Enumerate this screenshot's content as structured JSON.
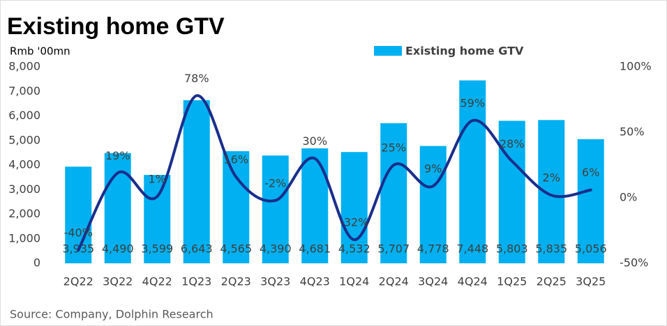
{
  "chart_data": {
    "type": "bar_line",
    "title": "Existing home GTV",
    "y_axis_label": "Rmb '00mn",
    "source": "Source: Company, Dolphin Research",
    "categories": [
      "2Q22",
      "3Q22",
      "4Q22",
      "1Q23",
      "2Q23",
      "3Q23",
      "4Q23",
      "1Q24",
      "2Q24",
      "3Q24",
      "4Q24",
      "1Q25",
      "2Q25",
      "3Q25"
    ],
    "series": [
      {
        "name": "Existing home GTV",
        "type": "bar",
        "color": "#00b0f0",
        "values": [
          3935,
          4490,
          3599,
          6643,
          4565,
          4390,
          4681,
          4532,
          5707,
          4778,
          7448,
          5803,
          5835,
          5056
        ],
        "value_labels": [
          "3,935",
          "4,490",
          "3,599",
          "6,643",
          "4,565",
          "4,390",
          "4,681",
          "4,532",
          "5,707",
          "4,778",
          "7,448",
          "5,803",
          "5,835",
          "5,056"
        ]
      },
      {
        "type": "line",
        "axis": "y2",
        "color": "#1a2e8c",
        "values": [
          -40,
          19,
          1,
          78,
          16,
          -2,
          30,
          -32,
          25,
          9,
          59,
          28,
          2,
          6
        ],
        "value_labels": [
          "-40%",
          "19%",
          "1%",
          "78%",
          "16%",
          "-2%",
          "30%",
          "-32%",
          "25%",
          "9%",
          "59%",
          "28%",
          "2%",
          "6%"
        ]
      }
    ],
    "ylim": [
      0,
      8000
    ],
    "yticks": [
      0,
      {
        "value": 1000,
        "label": "1,000"
      },
      {
        "value": 2000,
        "label": "2,000"
      },
      {
        "value": 3000,
        "label": "3,000"
      },
      {
        "value": 4000,
        "label": "4,000"
      },
      {
        "value": 5000,
        "label": "5,000"
      },
      {
        "value": 6000,
        "label": "6,000"
      },
      {
        "value": 7000,
        "label": "7,000"
      },
      {
        "value": 8000,
        "label": "8,000"
      }
    ],
    "y2lim": [
      -50,
      100
    ],
    "y2ticks": [
      {
        "value": -50,
        "label": "-50%"
      },
      {
        "value": 0,
        "label": "0%"
      },
      {
        "value": 50,
        "label": "50%"
      },
      {
        "value": 100,
        "label": "100%"
      }
    ],
    "legend": "top"
  }
}
